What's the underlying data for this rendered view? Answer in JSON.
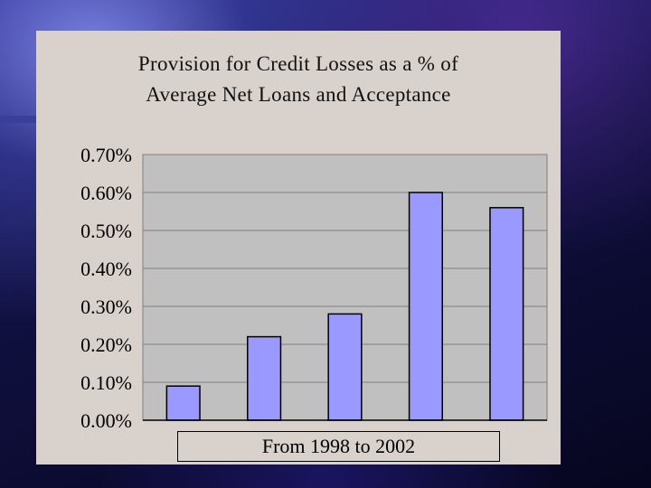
{
  "chart_data": {
    "type": "bar",
    "title_lines": [
      "Provision for Credit Losses as a % of",
      "Average Net Loans and Acceptance"
    ],
    "xlabel": "From 1998 to 2002",
    "ylabel": "",
    "categories": [
      "",
      "",
      "",
      "",
      ""
    ],
    "values": [
      0.09,
      0.22,
      0.28,
      0.6,
      0.56
    ],
    "ylim": [
      0,
      0.7
    ],
    "yticks": [
      "0.00%",
      "0.10%",
      "0.20%",
      "0.30%",
      "0.40%",
      "0.50%",
      "0.60%",
      "0.70%"
    ],
    "grid": true,
    "bar_color": "#9999ff",
    "plot_bg": "#c0c0c0"
  }
}
